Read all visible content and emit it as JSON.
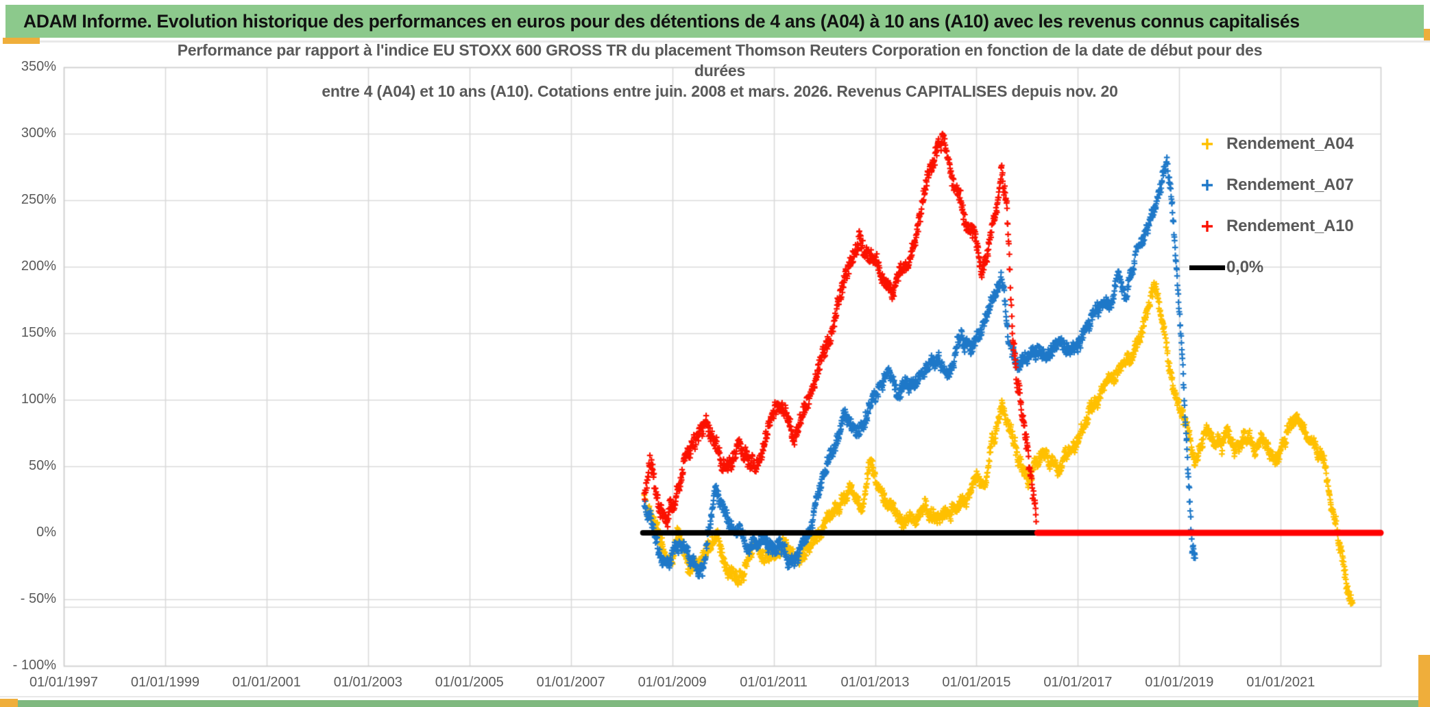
{
  "page": {
    "title_bar": {
      "text": "ADAM Informe. Evolution historique des performances en euros pour des détentions de 4 ans (A04) à 10 ans (A10) avec les revenus connus capitalisés",
      "bg_color": "#8CC98C",
      "accent_color": "#EFAE3B"
    }
  },
  "chart_data": {
    "type": "scatter",
    "title_lines": [
      "Performance par rapport à l'indice EU STOXX 600 GROSS TR  du placement Thomson Reuters Corporation en fonction de la date de début pour des",
      "durées",
      "entre 4 (A04) et 10 ans (A10). Cotations entre juin. 2008 et mars. 2026. Revenus CAPITALISES depuis nov. 20"
    ],
    "xlabel": "",
    "ylabel": "",
    "xlim_years": [
      1997,
      2022.97
    ],
    "ylim": [
      -100,
      350
    ],
    "grid": true,
    "legend_position": "right-inside",
    "y_ticks": [
      {
        "v": 350,
        "label": "350%"
      },
      {
        "v": 300,
        "label": "300%"
      },
      {
        "v": 250,
        "label": "250%"
      },
      {
        "v": 200,
        "label": "200%"
      },
      {
        "v": 150,
        "label": "150%"
      },
      {
        "v": 100,
        "label": "100%"
      },
      {
        "v": 50,
        "label": "50%"
      },
      {
        "v": 0,
        "label": "0%"
      },
      {
        "v": -50,
        "label": "- 50%"
      },
      {
        "v": -100,
        "label": "- 100%"
      }
    ],
    "x_ticks": [
      {
        "v": 1997,
        "label": "01/01/1997"
      },
      {
        "v": 1999,
        "label": "01/01/1999"
      },
      {
        "v": 2001,
        "label": "01/01/2001"
      },
      {
        "v": 2003,
        "label": "01/01/2003"
      },
      {
        "v": 2005,
        "label": "01/01/2005"
      },
      {
        "v": 2007,
        "label": "01/01/2007"
      },
      {
        "v": 2009,
        "label": "01/01/2009"
      },
      {
        "v": 2011,
        "label": "01/01/2011"
      },
      {
        "v": 2013,
        "label": "01/01/2013"
      },
      {
        "v": 2015,
        "label": "01/01/2015"
      },
      {
        "v": 2017,
        "label": "01/01/2017"
      },
      {
        "v": 2019,
        "label": "01/01/2019"
      },
      {
        "v": 2021,
        "label": "01/01/2021"
      }
    ],
    "legend": [
      {
        "label": "Rendement_A04",
        "color": "#FFC000",
        "marker": "plus"
      },
      {
        "label": "Rendement_A07",
        "color": "#1E78C8",
        "marker": "plus"
      },
      {
        "label": "Rendement_A10",
        "color": "#FB1100",
        "marker": "plus"
      },
      {
        "label": "0,0%",
        "color": "#000000",
        "marker": "line"
      }
    ],
    "series": [
      {
        "name": "Rendement_A04",
        "color": "#FFC000",
        "seed": 11,
        "noise_slow": 7,
        "noise_fast": 7,
        "anchors": [
          [
            2008.45,
            28
          ],
          [
            2008.6,
            12
          ],
          [
            2008.75,
            -8
          ],
          [
            2008.95,
            -25
          ],
          [
            2009.1,
            -5
          ],
          [
            2009.35,
            -26
          ],
          [
            2009.6,
            -13
          ],
          [
            2009.9,
            2
          ],
          [
            2010.1,
            -30
          ],
          [
            2010.35,
            -38
          ],
          [
            2010.6,
            -12
          ],
          [
            2010.85,
            -22
          ],
          [
            2011.2,
            -6
          ],
          [
            2011.5,
            -16
          ],
          [
            2011.9,
            -2
          ],
          [
            2012.3,
            20
          ],
          [
            2012.55,
            30
          ],
          [
            2012.75,
            15
          ],
          [
            2012.9,
            50
          ],
          [
            2013.1,
            30
          ],
          [
            2013.3,
            22
          ],
          [
            2013.55,
            10
          ],
          [
            2013.9,
            18
          ],
          [
            2014.2,
            8
          ],
          [
            2014.5,
            14
          ],
          [
            2014.8,
            30
          ],
          [
            2015.0,
            50
          ],
          [
            2015.15,
            38
          ],
          [
            2015.3,
            70
          ],
          [
            2015.5,
            95
          ],
          [
            2015.65,
            75
          ],
          [
            2015.8,
            58
          ],
          [
            2016.05,
            42
          ],
          [
            2016.3,
            62
          ],
          [
            2016.6,
            45
          ],
          [
            2016.9,
            62
          ],
          [
            2017.2,
            85
          ],
          [
            2017.5,
            105
          ],
          [
            2017.8,
            120
          ],
          [
            2018.1,
            140
          ],
          [
            2018.35,
            165
          ],
          [
            2018.55,
            183
          ],
          [
            2018.7,
            160
          ],
          [
            2018.8,
            125
          ],
          [
            2018.95,
            95
          ],
          [
            2019.1,
            80
          ],
          [
            2019.3,
            55
          ],
          [
            2019.5,
            75
          ],
          [
            2019.7,
            60
          ],
          [
            2019.9,
            72
          ],
          [
            2020.1,
            62
          ],
          [
            2020.3,
            72
          ],
          [
            2020.5,
            60
          ],
          [
            2020.7,
            70
          ],
          [
            2020.9,
            58
          ],
          [
            2021.1,
            75
          ],
          [
            2021.3,
            88
          ],
          [
            2021.5,
            78
          ],
          [
            2021.7,
            68
          ],
          [
            2021.85,
            55
          ],
          [
            2022.0,
            25
          ],
          [
            2022.1,
            5
          ],
          [
            2022.2,
            -15
          ],
          [
            2022.3,
            -35
          ],
          [
            2022.42,
            -48
          ]
        ]
      },
      {
        "name": "Rendement_A07",
        "color": "#1E78C8",
        "seed": 23,
        "noise_slow": 7,
        "noise_fast": 7,
        "anchors": [
          [
            2008.45,
            25
          ],
          [
            2008.6,
            5
          ],
          [
            2008.8,
            -15
          ],
          [
            2008.95,
            -25
          ],
          [
            2009.15,
            -2
          ],
          [
            2009.4,
            -20
          ],
          [
            2009.6,
            -28
          ],
          [
            2009.85,
            35
          ],
          [
            2010.1,
            10
          ],
          [
            2010.35,
            -5
          ],
          [
            2010.5,
            -18
          ],
          [
            2010.7,
            -8
          ],
          [
            2010.9,
            -15
          ],
          [
            2011.1,
            -5
          ],
          [
            2011.3,
            -18
          ],
          [
            2011.55,
            -10
          ],
          [
            2011.75,
            10
          ],
          [
            2011.95,
            45
          ],
          [
            2012.2,
            70
          ],
          [
            2012.4,
            95
          ],
          [
            2012.6,
            78
          ],
          [
            2012.8,
            90
          ],
          [
            2013.0,
            105
          ],
          [
            2013.25,
            120
          ],
          [
            2013.45,
            100
          ],
          [
            2013.7,
            112
          ],
          [
            2013.95,
            125
          ],
          [
            2014.2,
            135
          ],
          [
            2014.45,
            125
          ],
          [
            2014.7,
            148
          ],
          [
            2014.9,
            135
          ],
          [
            2015.1,
            155
          ],
          [
            2015.3,
            170
          ],
          [
            2015.5,
            190
          ],
          [
            2015.65,
            145
          ],
          [
            2015.85,
            130
          ],
          [
            2016.1,
            140
          ],
          [
            2016.35,
            128
          ],
          [
            2016.6,
            140
          ],
          [
            2016.85,
            130
          ],
          [
            2017.1,
            145
          ],
          [
            2017.35,
            162
          ],
          [
            2017.6,
            172
          ],
          [
            2017.8,
            188
          ],
          [
            2017.95,
            175
          ],
          [
            2018.15,
            205
          ],
          [
            2018.3,
            218
          ],
          [
            2018.45,
            235
          ],
          [
            2018.6,
            255
          ],
          [
            2018.75,
            278
          ],
          [
            2018.85,
            250
          ],
          [
            2018.95,
            190
          ],
          [
            2019.05,
            130
          ],
          [
            2019.15,
            60
          ],
          [
            2019.25,
            -5
          ],
          [
            2019.32,
            -18
          ]
        ]
      },
      {
        "name": "Rendement_A10",
        "color": "#FB1100",
        "seed": 37,
        "noise_slow": 8,
        "noise_fast": 9,
        "anchors": [
          [
            2008.45,
            25
          ],
          [
            2008.55,
            48
          ],
          [
            2008.7,
            30
          ],
          [
            2008.9,
            8
          ],
          [
            2009.1,
            30
          ],
          [
            2009.3,
            55
          ],
          [
            2009.5,
            70
          ],
          [
            2009.7,
            78
          ],
          [
            2009.9,
            60
          ],
          [
            2010.1,
            42
          ],
          [
            2010.3,
            68
          ],
          [
            2010.5,
            58
          ],
          [
            2010.7,
            50
          ],
          [
            2010.9,
            75
          ],
          [
            2011.1,
            95
          ],
          [
            2011.25,
            100
          ],
          [
            2011.4,
            68
          ],
          [
            2011.6,
            85
          ],
          [
            2011.75,
            105
          ],
          [
            2011.9,
            125
          ],
          [
            2012.1,
            150
          ],
          [
            2012.3,
            175
          ],
          [
            2012.5,
            200
          ],
          [
            2012.7,
            225
          ],
          [
            2012.85,
            215
          ],
          [
            2013.0,
            200
          ],
          [
            2013.2,
            185
          ],
          [
            2013.35,
            172
          ],
          [
            2013.5,
            195
          ],
          [
            2013.7,
            215
          ],
          [
            2013.9,
            240
          ],
          [
            2014.05,
            270
          ],
          [
            2014.2,
            290
          ],
          [
            2014.35,
            295
          ],
          [
            2014.5,
            268
          ],
          [
            2014.65,
            255
          ],
          [
            2014.8,
            235
          ],
          [
            2014.95,
            228
          ],
          [
            2015.1,
            195
          ],
          [
            2015.25,
            215
          ],
          [
            2015.4,
            240
          ],
          [
            2015.5,
            268
          ],
          [
            2015.6,
            240
          ],
          [
            2015.7,
            150
          ],
          [
            2015.8,
            110
          ],
          [
            2015.9,
            95
          ],
          [
            2016.0,
            70
          ],
          [
            2016.1,
            35
          ],
          [
            2016.18,
            8
          ]
        ]
      }
    ],
    "zero_lines": [
      {
        "label": "0,0%",
        "color": "#000000",
        "from_year": 2008.42,
        "to_year": 2016.2,
        "value": 0
      },
      {
        "label": "0,0%",
        "color": "#FF0000",
        "from_year": 2016.2,
        "to_year": 2022.97,
        "value": 0
      }
    ]
  }
}
